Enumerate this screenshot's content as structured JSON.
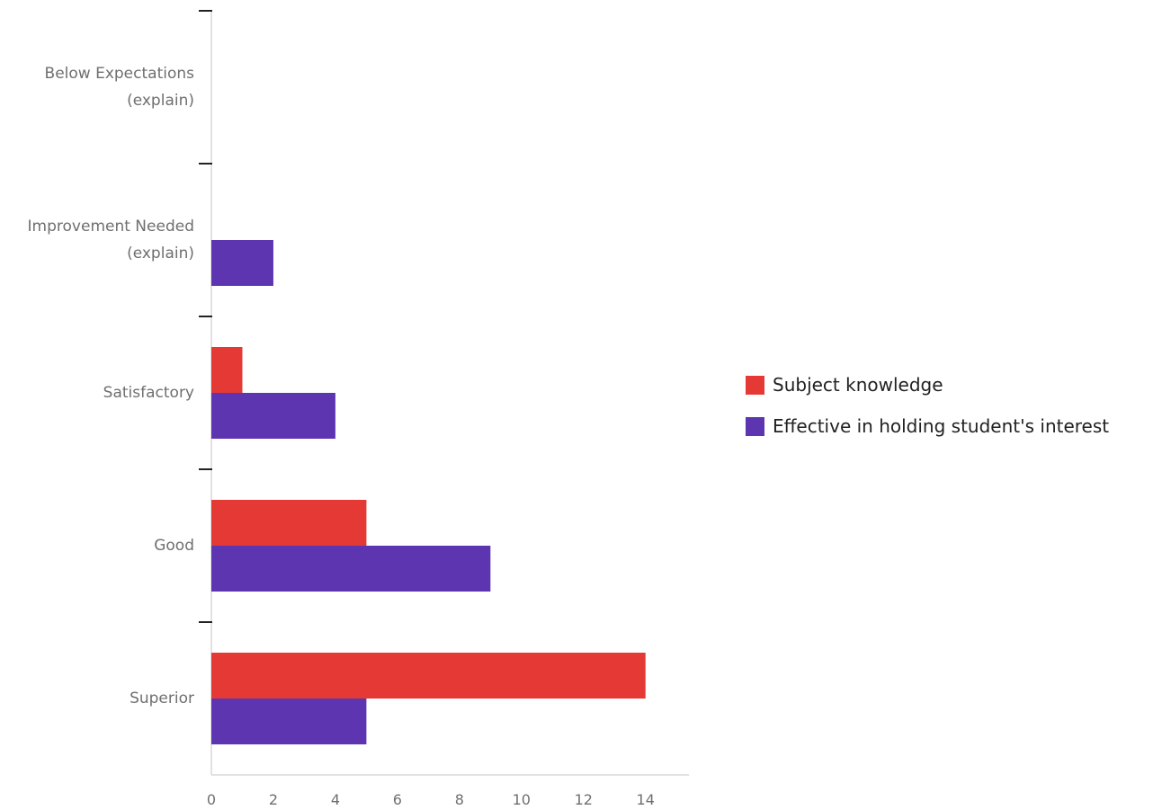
{
  "chart_data": {
    "type": "bar",
    "orientation": "horizontal",
    "categories": [
      [
        "Below Expectations",
        "(explain)"
      ],
      [
        "Improvement Needed",
        "(explain)"
      ],
      [
        "Satisfactory"
      ],
      [
        "Good"
      ],
      [
        "Superior"
      ]
    ],
    "series": [
      {
        "name": "Subject knowledge",
        "color": "#e53935",
        "values": [
          0,
          0,
          1,
          5,
          14
        ]
      },
      {
        "name": "Effective in holding student's interest",
        "color": "#5e35b1",
        "values": [
          0,
          2,
          4,
          9,
          5
        ]
      }
    ],
    "xlim": [
      0,
      15.4
    ],
    "xticks": [
      0,
      2,
      4,
      6,
      8,
      10,
      12,
      14
    ],
    "legend_position": "right",
    "grid": false
  }
}
